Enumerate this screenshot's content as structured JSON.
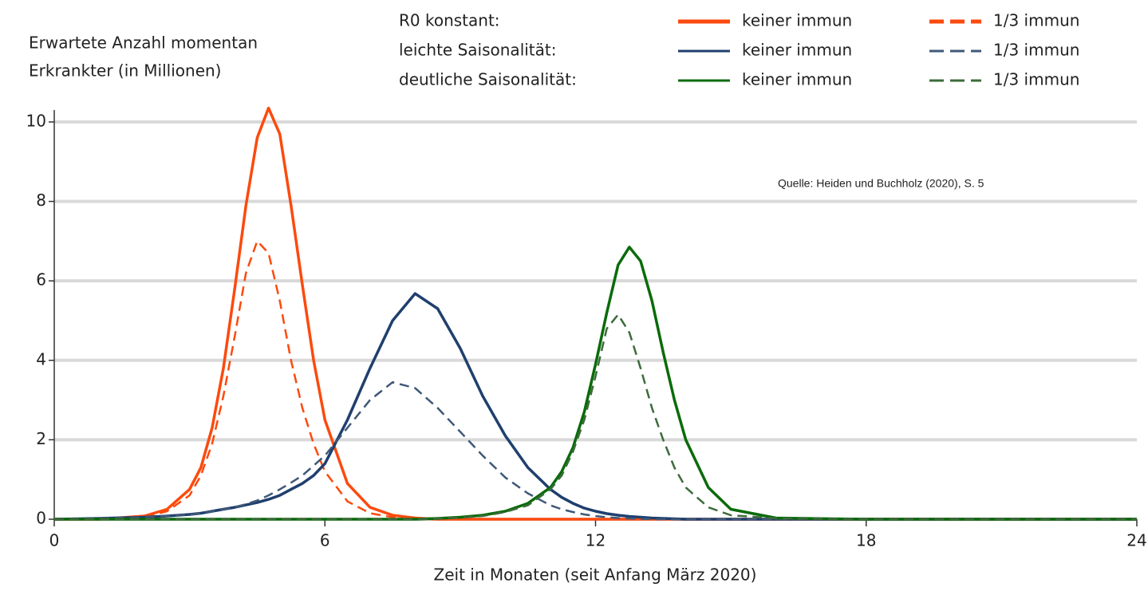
{
  "chart_data": {
    "type": "line",
    "y_label": [
      "Erwartete Anzahl momentan",
      "Erkrankter (in Millionen)"
    ],
    "x_label": "Zeit in Monaten (seit Anfang März 2020)",
    "annotation": "Quelle: Heiden und Buchholz (2020), S. 5",
    "xlim": [
      0,
      24
    ],
    "xticks": [
      0,
      6,
      12,
      18,
      24
    ],
    "ylim": [
      0,
      10.4
    ],
    "yticks": [
      0,
      2,
      4,
      6,
      8,
      10
    ],
    "grid": true,
    "x": [
      0,
      1,
      2,
      2.5,
      3,
      3.25,
      3.5,
      3.75,
      4,
      4.25,
      4.5,
      4.75,
      5,
      5.25,
      5.5,
      5.75,
      6,
      6.5,
      7,
      7.5,
      8,
      8.5,
      9,
      9.5,
      10,
      10.5,
      11,
      11.25,
      11.5,
      11.75,
      12,
      12.25,
      12.5,
      12.75,
      13,
      13.25,
      13.5,
      13.75,
      14,
      14.5,
      15,
      16,
      18,
      24
    ],
    "groups": [
      {
        "label": "R0 konstant:",
        "series": [
          {
            "name": "keiner immun",
            "color": "#fc4a0e",
            "style": "solid",
            "values": [
              0,
              0,
              0.08,
              0.25,
              0.75,
              1.3,
              2.3,
              3.8,
              5.8,
              7.9,
              9.6,
              10.35,
              9.7,
              7.9,
              5.9,
              4.0,
              2.5,
              0.9,
              0.3,
              0.1,
              0.03,
              0,
              0,
              0,
              0,
              0,
              0,
              0,
              0,
              0,
              0,
              0,
              0,
              0,
              0,
              0,
              0,
              0,
              0,
              0,
              0,
              0,
              0,
              0
            ]
          },
          {
            "name": "1/3 immun",
            "color": "#fc4a0e",
            "style": "dashed",
            "values": [
              0,
              0,
              0.05,
              0.2,
              0.6,
              1.1,
              1.9,
              3.1,
              4.6,
              6.2,
              7.0,
              6.7,
              5.5,
              4.0,
              2.8,
              1.9,
              1.2,
              0.45,
              0.15,
              0.05,
              0,
              0,
              0,
              0,
              0,
              0,
              0,
              0,
              0,
              0,
              0,
              0,
              0,
              0,
              0,
              0,
              0,
              0,
              0,
              0,
              0,
              0,
              0,
              0
            ]
          }
        ]
      },
      {
        "label": "leichte Saisonalität:",
        "series": [
          {
            "name": "keiner immun",
            "color": "#1f3f6e",
            "style": "solid",
            "values": [
              0,
              0.02,
              0.05,
              0.08,
              0.12,
              0.15,
              0.2,
              0.25,
              0.3,
              0.36,
              0.42,
              0.5,
              0.6,
              0.75,
              0.9,
              1.1,
              1.4,
              2.5,
              3.8,
              5.0,
              5.68,
              5.3,
              4.3,
              3.1,
              2.1,
              1.3,
              0.75,
              0.55,
              0.4,
              0.28,
              0.2,
              0.14,
              0.1,
              0.07,
              0.05,
              0.03,
              0.02,
              0.01,
              0,
              0,
              0,
              0,
              0,
              0
            ]
          },
          {
            "name": "1/3 immun",
            "color": "#3f5878",
            "style": "dashed",
            "values": [
              0,
              0.02,
              0.05,
              0.08,
              0.12,
              0.15,
              0.2,
              0.25,
              0.3,
              0.38,
              0.47,
              0.6,
              0.75,
              0.92,
              1.1,
              1.35,
              1.6,
              2.3,
              3.0,
              3.45,
              3.3,
              2.8,
              2.2,
              1.6,
              1.05,
              0.65,
              0.35,
              0.25,
              0.18,
              0.12,
              0.08,
              0.05,
              0.03,
              0.02,
              0.01,
              0,
              0,
              0,
              0,
              0,
              0,
              0,
              0,
              0
            ]
          }
        ]
      },
      {
        "label": "deutliche Saisonalität:",
        "series": [
          {
            "name": "keiner immun",
            "color": "#0a6b0a",
            "style": "solid",
            "values": [
              0,
              0,
              0,
              0,
              0,
              0,
              0,
              0,
              0,
              0,
              0,
              0,
              0,
              0,
              0,
              0,
              0,
              0,
              0,
              0,
              0,
              0.02,
              0.05,
              0.1,
              0.2,
              0.4,
              0.8,
              1.2,
              1.8,
              2.7,
              3.9,
              5.2,
              6.4,
              6.85,
              6.5,
              5.5,
              4.2,
              3.0,
              2.0,
              0.8,
              0.25,
              0.03,
              0,
              0
            ]
          },
          {
            "name": "1/3 immun",
            "color": "#3c6b3c",
            "style": "dashed",
            "values": [
              0,
              0,
              0,
              0,
              0,
              0,
              0,
              0,
              0,
              0,
              0,
              0,
              0,
              0,
              0,
              0,
              0,
              0,
              0,
              0,
              0,
              0.02,
              0.04,
              0.08,
              0.18,
              0.35,
              0.75,
              1.1,
              1.7,
              2.5,
              3.6,
              4.8,
              5.15,
              4.7,
              3.8,
              2.8,
              2.0,
              1.3,
              0.8,
              0.3,
              0.1,
              0.02,
              0,
              0
            ]
          }
        ]
      }
    ]
  }
}
